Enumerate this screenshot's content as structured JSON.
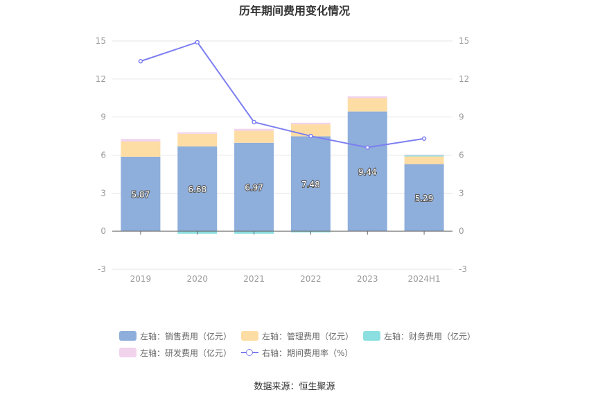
{
  "chart_data": {
    "type": "bar",
    "title": "历年期间费用变化情况",
    "categories": [
      "2019",
      "2020",
      "2021",
      "2022",
      "2023",
      "2024H1"
    ],
    "series": [
      {
        "name": "左轴：销售费用（亿元）",
        "type": "bar",
        "color": "#8eaedb",
        "values": [
          5.87,
          6.68,
          6.97,
          7.48,
          9.44,
          5.29
        ],
        "labels_shown": true
      },
      {
        "name": "左轴：管理费用（亿元）",
        "type": "bar",
        "color": "#fedda5",
        "values": [
          1.2,
          1.0,
          0.95,
          0.95,
          1.05,
          0.6
        ]
      },
      {
        "name": "左轴：财务费用（亿元）",
        "type": "bar",
        "color": "#8cdfe0",
        "values": [
          0.0,
          -0.2,
          -0.2,
          -0.1,
          0.0,
          0.1
        ]
      },
      {
        "name": "左轴：研发费用（亿元）",
        "type": "bar",
        "color": "#f2d3ec",
        "values": [
          0.2,
          0.12,
          0.15,
          0.12,
          0.15,
          0.05
        ]
      },
      {
        "name": "右轴：期间费用率（%）",
        "type": "line",
        "color": "#7c7ef0",
        "values": [
          13.4,
          14.9,
          8.6,
          7.5,
          6.6,
          7.3
        ]
      }
    ],
    "y_left": {
      "ylim": [
        -3,
        15
      ],
      "ticks": [
        "-3",
        "0",
        "3",
        "6",
        "9",
        "12",
        "15"
      ]
    },
    "y_right": {
      "ylim": [
        -3,
        15
      ],
      "ticks": [
        "-3",
        "0",
        "3",
        "6",
        "9",
        "12",
        "15"
      ]
    },
    "grid": true,
    "legend_position": "bottom"
  },
  "source_text": "数据来源：恒生聚源"
}
